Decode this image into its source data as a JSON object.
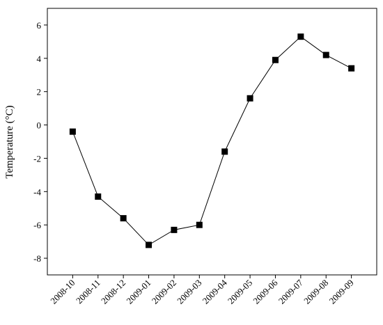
{
  "chart_data": {
    "type": "line",
    "y_label": "Temperature (°C)",
    "categories": [
      "2008-10",
      "2008-11",
      "2008-12",
      "2009-01",
      "2009-02",
      "2009-03",
      "2009-04",
      "2009-05",
      "2009-06",
      "2009-07",
      "2009-08",
      "2009-09"
    ],
    "series": [
      {
        "color": "#000000",
        "values": [
          -0.4,
          -4.3,
          -5.6,
          -7.2,
          -6.3,
          -6.0,
          -1.6,
          1.6,
          3.9,
          5.3,
          4.2,
          3.4
        ]
      }
    ],
    "ylim": [
      -9,
      7
    ],
    "yticks": [
      -8,
      -6,
      -4,
      -2,
      0,
      2,
      4,
      6
    ],
    "grid": false
  }
}
